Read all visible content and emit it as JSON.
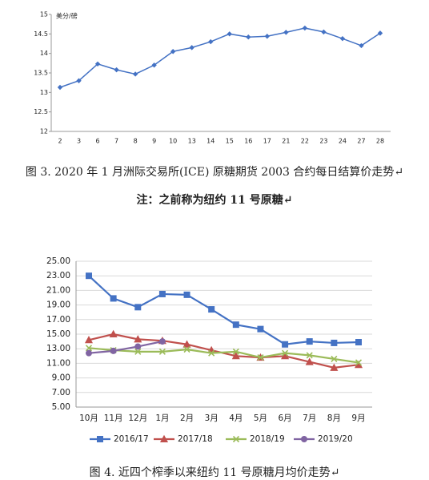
{
  "chart_data": [
    {
      "type": "line",
      "ylabel": "美分/磅",
      "categories": [
        "2",
        "3",
        "6",
        "7",
        "8",
        "9",
        "10",
        "13",
        "14",
        "15",
        "16",
        "17",
        "21",
        "22",
        "23",
        "24",
        "27",
        "28"
      ],
      "values": [
        13.13,
        13.3,
        13.73,
        13.58,
        13.47,
        13.7,
        14.05,
        14.15,
        14.3,
        14.5,
        14.42,
        14.44,
        14.54,
        14.65,
        14.55,
        14.38,
        14.2,
        14.52
      ],
      "color": "#4472c4",
      "marker": "diamond",
      "ylim": [
        12,
        15
      ],
      "yticks": [
        12,
        12.5,
        13,
        13.5,
        14,
        14.5,
        15
      ],
      "grid": false,
      "caption": "图 3. 2020 年 1 月洲际交易所(ICE) 原糖期货 2003 合约每日结算价走势↵",
      "note": "注：之前称为纽约 11 号原糖↵"
    },
    {
      "type": "line",
      "categories": [
        "10月",
        "11月",
        "12月",
        "1月",
        "2月",
        "3月",
        "4月",
        "5月",
        "6月",
        "7月",
        "8月",
        "9月"
      ],
      "series": [
        {
          "name": "2016/17",
          "color": "#4472c4",
          "marker": "square",
          "values": [
            23.0,
            19.9,
            18.7,
            20.5,
            20.4,
            18.4,
            16.3,
            15.7,
            13.6,
            14.0,
            13.8,
            13.9
          ]
        },
        {
          "name": "2017/18",
          "color": "#c0504d",
          "marker": "triangle",
          "values": [
            14.2,
            15.0,
            14.3,
            14.1,
            13.6,
            12.8,
            12.0,
            11.8,
            12.0,
            11.2,
            10.4,
            10.8
          ]
        },
        {
          "name": "2018/19",
          "color": "#9bbb59",
          "marker": "x",
          "values": [
            13.1,
            12.8,
            12.6,
            12.6,
            12.9,
            12.4,
            12.6,
            11.8,
            12.4,
            12.1,
            11.6,
            11.1
          ]
        },
        {
          "name": "2019/20",
          "color": "#8064a2",
          "marker": "circle",
          "values": [
            12.4,
            12.7,
            13.3,
            14.0,
            null,
            null,
            null,
            null,
            null,
            null,
            null,
            null
          ]
        }
      ],
      "ylim": [
        5,
        25
      ],
      "yticks": [
        {
          "value": 5,
          "label": "5.00"
        },
        {
          "value": 7,
          "label": "7.00"
        },
        {
          "value": 9,
          "label": "9.00"
        },
        {
          "value": 11,
          "label": "11.00"
        },
        {
          "value": 13,
          "label": "13.00"
        },
        {
          "value": 15,
          "label": "15.00"
        },
        {
          "value": 17,
          "label": "17.00"
        },
        {
          "value": 19,
          "label": "19.00"
        },
        {
          "value": 21,
          "label": "21.00"
        },
        {
          "value": 23,
          "label": "23.00"
        },
        {
          "value": 25,
          "label": "25.00"
        }
      ],
      "grid": true,
      "legend": "bottom",
      "caption": "图 4. 近四个榨季以来纽约 11 号原糖月均价走势↵"
    }
  ]
}
